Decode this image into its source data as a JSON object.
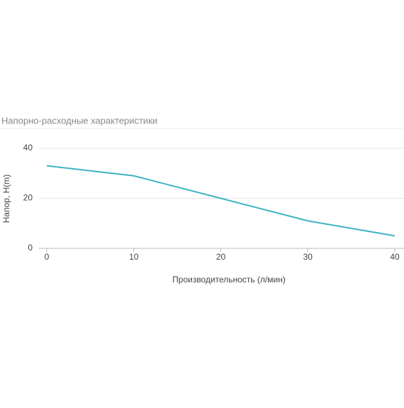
{
  "chart_data": {
    "type": "line",
    "title": "Напорно-расходные характеристики",
    "x_label": "Производительность (л/мин)",
    "y_label": "Напор, H(m)",
    "x": [
      0,
      10,
      20,
      30,
      40
    ],
    "series": [
      {
        "name": null,
        "color": "#3fb4c4",
        "values": [
          33,
          29,
          20,
          11,
          5
        ]
      }
    ],
    "xlim": [
      0,
      40
    ],
    "xticks": [
      0,
      10,
      20,
      30,
      40
    ],
    "ylim": [
      0,
      40
    ],
    "yticks": [
      0,
      20,
      40
    ],
    "grid": true
  }
}
